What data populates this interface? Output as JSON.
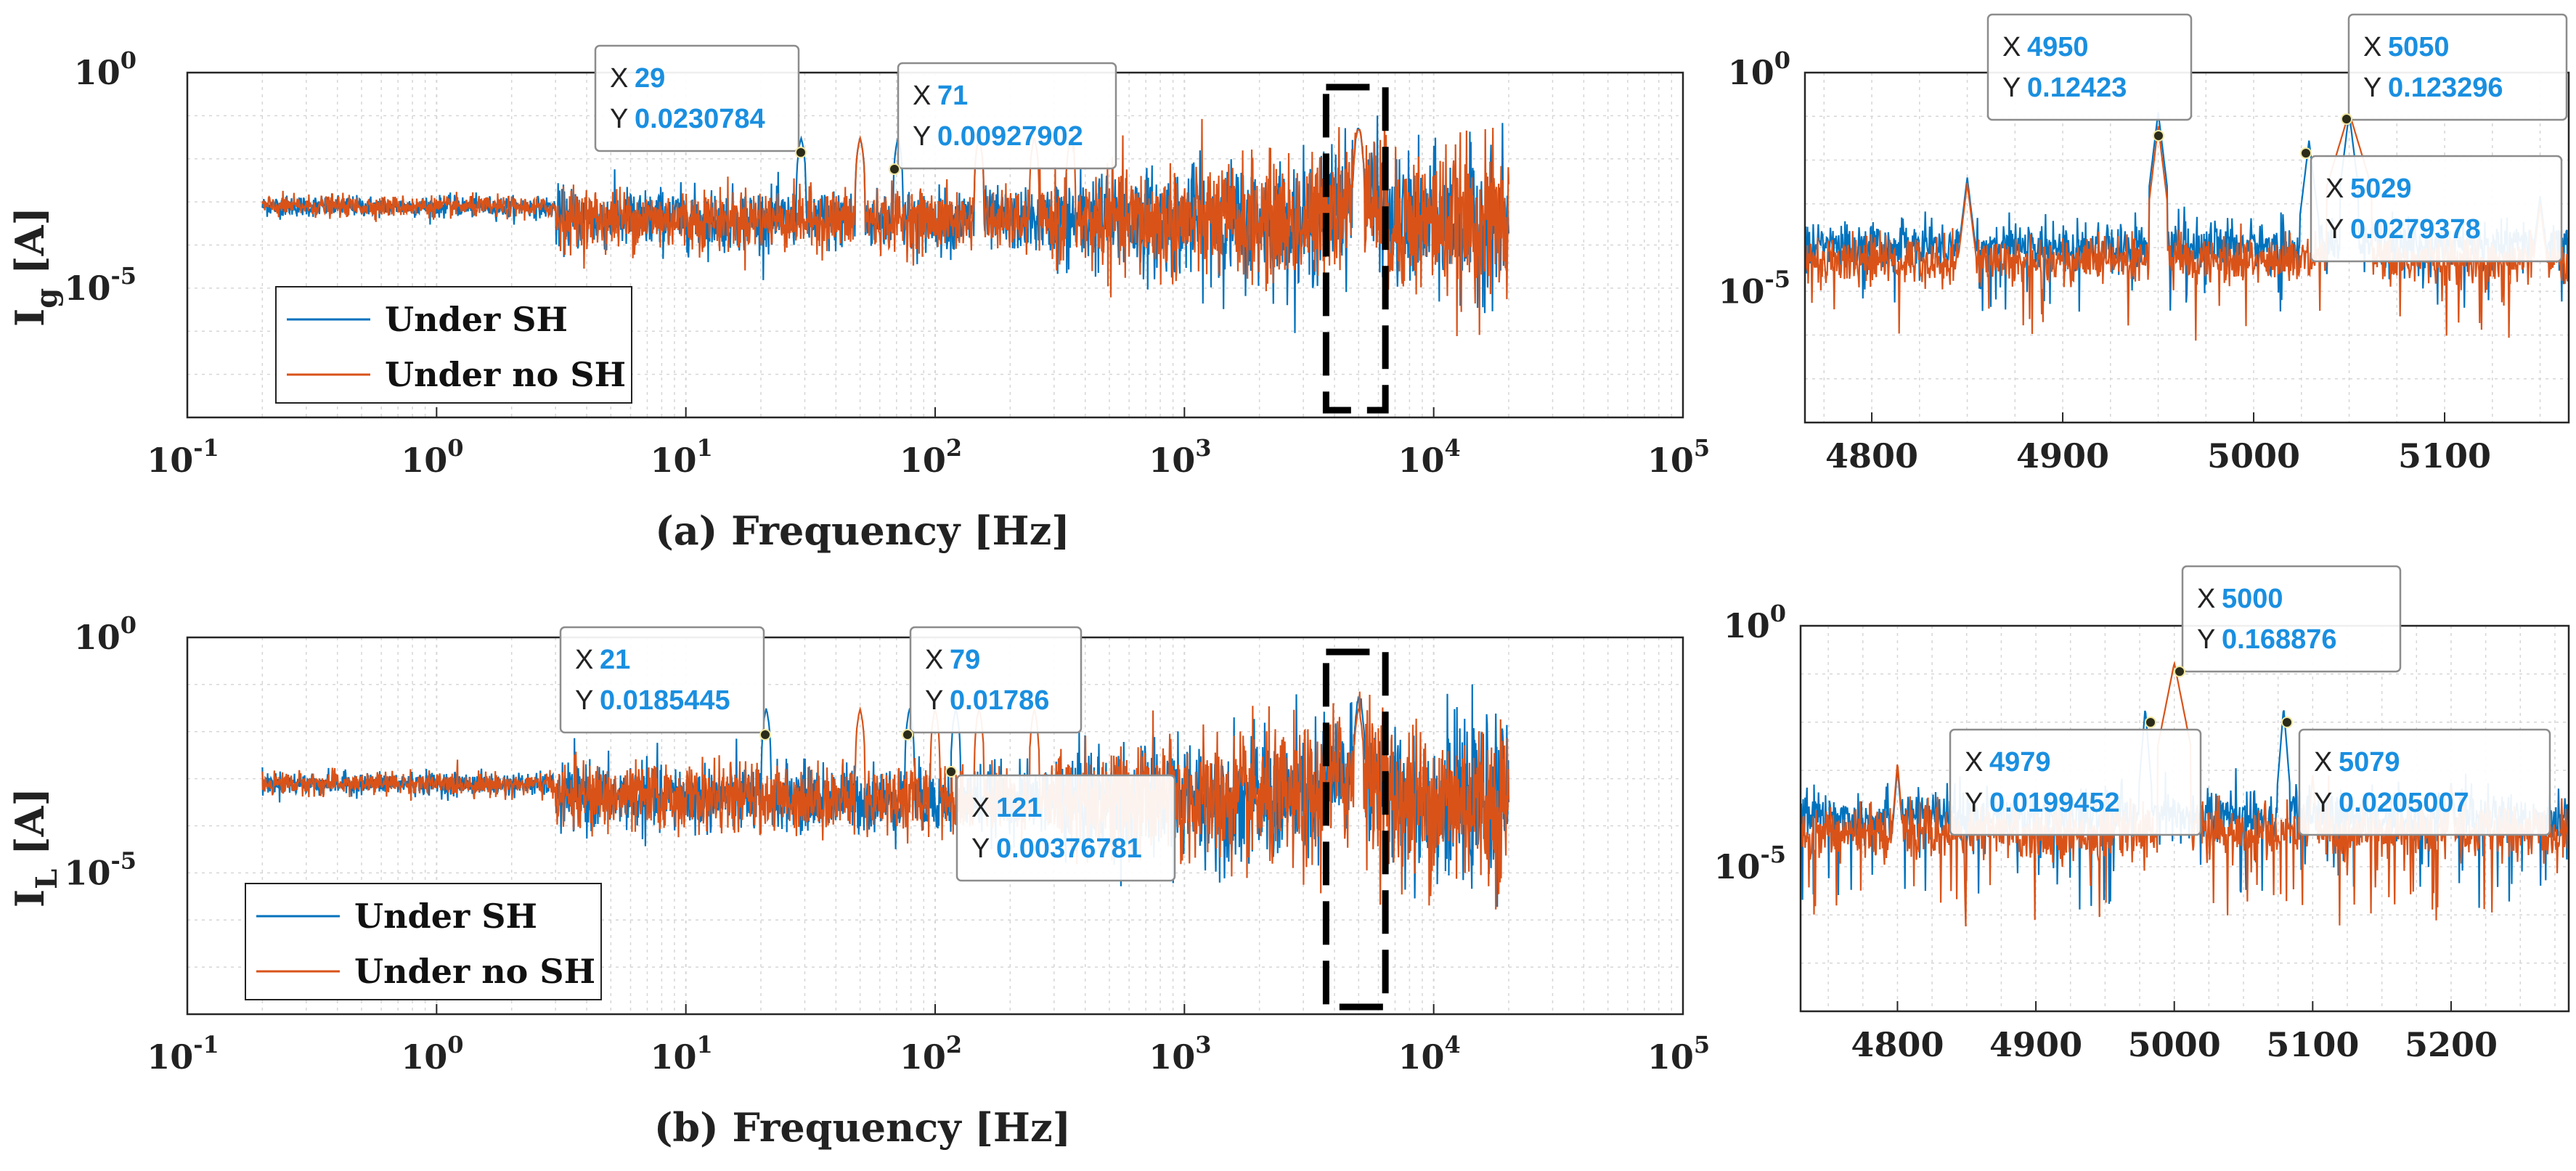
{
  "colors": {
    "series1": "#0072BD",
    "series2": "#D95319",
    "grid": "#d6d6d6",
    "axis": "#262626",
    "value_text": "#1a8fe0"
  },
  "chart_data": [
    {
      "id": "a_full",
      "type": "line",
      "xscale": "log",
      "yscale": "log",
      "xlim": [
        0.1,
        100000
      ],
      "ylim": [
        1e-08,
        1
      ],
      "xticks": [
        {
          "base": "10",
          "exp": "-1"
        },
        {
          "base": "10",
          "exp": "0"
        },
        {
          "base": "10",
          "exp": "1"
        },
        {
          "base": "10",
          "exp": "2"
        },
        {
          "base": "10",
          "exp": "3"
        },
        {
          "base": "10",
          "exp": "4"
        },
        {
          "base": "10",
          "exp": "5"
        }
      ],
      "yticks": [
        {
          "base": "10",
          "exp": "0"
        },
        {
          "base": "10",
          "exp": "-5"
        }
      ],
      "ylabel": {
        "main": "I",
        "sub": "g",
        "unit": " [A]"
      },
      "xlabel": "(a) Frequency [Hz]",
      "legend": [
        "Under SH",
        "Under no SH"
      ],
      "legend_position": "bottom-left",
      "series": [
        {
          "name": "Under SH",
          "color": "#0072BD",
          "harmonics": [
            29,
            50,
            71,
            150,
            4950,
            5050
          ]
        },
        {
          "name": "Under no SH",
          "color": "#D95319",
          "harmonics": [
            50,
            150,
            250,
            350,
            4950,
            5050
          ]
        }
      ],
      "datatips": [
        {
          "x_label": "X",
          "y_label": "Y",
          "x": "29",
          "y": "0.0230784"
        },
        {
          "x_label": "X",
          "y_label": "Y",
          "x": "71",
          "y": "0.00927902"
        }
      ]
    },
    {
      "id": "a_zoom",
      "type": "line",
      "xscale": "linear",
      "yscale": "log",
      "xlim": [
        4765,
        5165
      ],
      "ylim": [
        1e-08,
        1
      ],
      "xticks": [
        "4800",
        "4900",
        "5000",
        "5100"
      ],
      "yticks": [
        {
          "base": "10",
          "exp": "0"
        },
        {
          "base": "10",
          "exp": "-5"
        }
      ],
      "series": [
        {
          "name": "Under SH",
          "color": "#0072BD",
          "peaks": [
            [
              4850,
              0.004
            ],
            [
              4950,
              0.12423
            ],
            [
              5029,
              0.0279378
            ],
            [
              5050,
              0.123296
            ],
            [
              5150,
              0.0015
            ]
          ]
        },
        {
          "name": "Under no SH",
          "color": "#D95319",
          "peaks": [
            [
              4850,
              0.003
            ],
            [
              4950,
              0.06
            ],
            [
              5050,
              0.123296
            ],
            [
              5150,
              0.001
            ]
          ]
        }
      ],
      "datatips": [
        {
          "x_label": "X",
          "y_label": "Y",
          "x": "4950",
          "y": "0.12423"
        },
        {
          "x_label": "X",
          "y_label": "Y",
          "x": "5050",
          "y": "0.123296"
        },
        {
          "x_label": "X",
          "y_label": "Y",
          "x": "5029",
          "y": "0.0279378"
        }
      ]
    },
    {
      "id": "b_full",
      "type": "line",
      "xscale": "log",
      "yscale": "log",
      "xlim": [
        0.1,
        100000
      ],
      "ylim": [
        1e-08,
        1
      ],
      "xticks": [
        {
          "base": "10",
          "exp": "-1"
        },
        {
          "base": "10",
          "exp": "0"
        },
        {
          "base": "10",
          "exp": "1"
        },
        {
          "base": "10",
          "exp": "2"
        },
        {
          "base": "10",
          "exp": "3"
        },
        {
          "base": "10",
          "exp": "4"
        },
        {
          "base": "10",
          "exp": "5"
        }
      ],
      "yticks": [
        {
          "base": "10",
          "exp": "0"
        },
        {
          "base": "10",
          "exp": "-5"
        }
      ],
      "ylabel": {
        "main": "I",
        "sub": "L",
        "unit": " [A]"
      },
      "xlabel": "(b) Frequency [Hz]",
      "legend": [
        "Under SH",
        "Under no SH"
      ],
      "legend_position": "bottom-left",
      "series": [
        {
          "name": "Under SH",
          "color": "#0072BD",
          "harmonics": [
            21,
            79,
            121,
            4979,
            5079
          ]
        },
        {
          "name": "Under no SH",
          "color": "#D95319",
          "harmonics": [
            50,
            100,
            150,
            250,
            5000
          ]
        }
      ],
      "datatips": [
        {
          "x_label": "X",
          "y_label": "Y",
          "x": "21",
          "y": "0.0185445"
        },
        {
          "x_label": "X",
          "y_label": "Y",
          "x": "79",
          "y": "0.01786"
        },
        {
          "x_label": "X",
          "y_label": "Y",
          "x": "121",
          "y": "0.00376781"
        }
      ]
    },
    {
      "id": "b_zoom",
      "type": "line",
      "xscale": "linear",
      "yscale": "log",
      "xlim": [
        4730,
        5285
      ],
      "ylim": [
        1e-08,
        1
      ],
      "xticks": [
        "4800",
        "4900",
        "5000",
        "5100",
        "5200"
      ],
      "yticks": [
        {
          "base": "10",
          "exp": "0"
        },
        {
          "base": "10",
          "exp": "-5"
        }
      ],
      "series": [
        {
          "name": "Under SH",
          "color": "#0072BD",
          "peaks": [
            [
              4800,
              0.0012
            ],
            [
              4979,
              0.0199452
            ],
            [
              5079,
              0.0205007
            ],
            [
              5200,
              0.0006
            ]
          ]
        },
        {
          "name": "Under no SH",
          "color": "#D95319",
          "peaks": [
            [
              4800,
              0.0015
            ],
            [
              5000,
              0.168876
            ],
            [
              5100,
              0.0008
            ],
            [
              5200,
              0.0005
            ]
          ]
        }
      ],
      "datatips": [
        {
          "x_label": "X",
          "y_label": "Y",
          "x": "5000",
          "y": "0.168876"
        },
        {
          "x_label": "X",
          "y_label": "Y",
          "x": "4979",
          "y": "0.0199452"
        },
        {
          "x_label": "X",
          "y_label": "Y",
          "x": "5079",
          "y": "0.0205007"
        }
      ]
    }
  ]
}
